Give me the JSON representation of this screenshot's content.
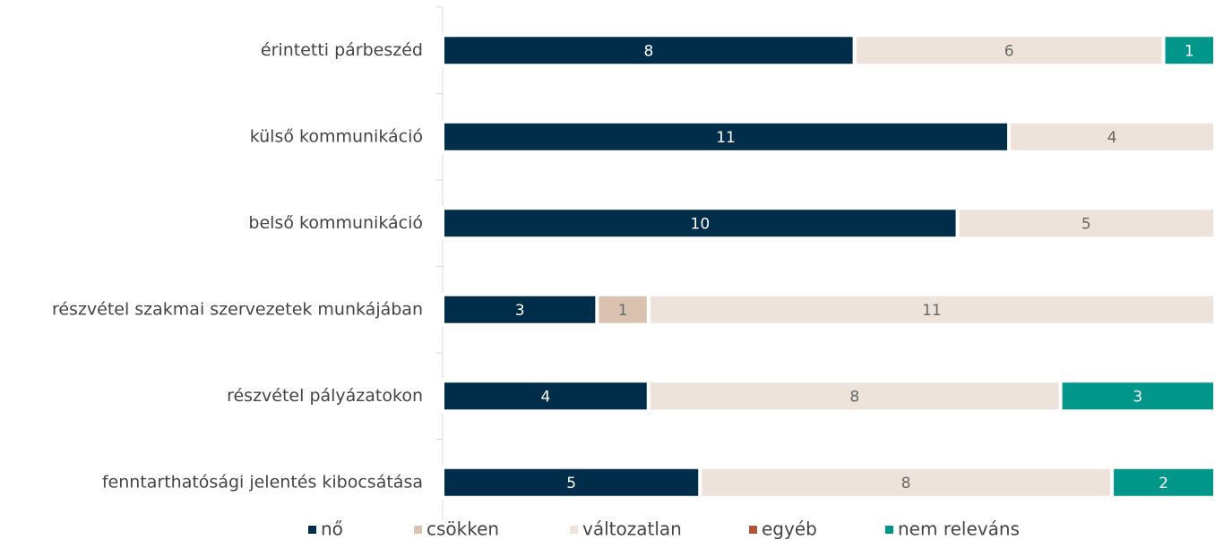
{
  "chart_data": {
    "type": "stacked-bar-horizontal",
    "categories": [
      "érintetti párbeszéd",
      "külső kommunikáció",
      "belső kommunikáció",
      "részvétel szakmai szervezetek munkájában",
      "részvétel pályázatokon",
      "fenntarthatósági jelentés kibocsátása"
    ],
    "series": [
      {
        "name": "nő",
        "color": "#002d4a",
        "values": [
          8,
          11,
          10,
          3,
          4,
          5
        ]
      },
      {
        "name": "csökken",
        "color": "#d9c3b0",
        "values": [
          null,
          null,
          null,
          1,
          null,
          null
        ]
      },
      {
        "name": "változatlan",
        "color": "#ede3da",
        "values": [
          6,
          4,
          5,
          11,
          8,
          8
        ]
      },
      {
        "name": "egyéb",
        "color": "#b5533c",
        "values": [
          null,
          null,
          null,
          null,
          null,
          null
        ]
      },
      {
        "name": "nem releváns",
        "color": "#00968a",
        "values": [
          1,
          null,
          null,
          null,
          3,
          2
        ]
      }
    ],
    "xlim": [
      0,
      15
    ],
    "legend": "bottom"
  }
}
